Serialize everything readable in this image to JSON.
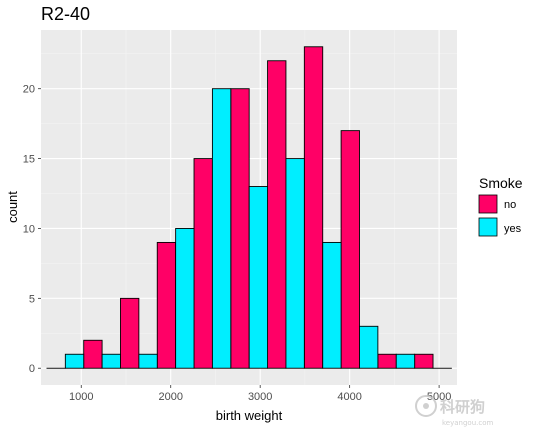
{
  "chart_data": {
    "type": "bar",
    "title": "R2-40",
    "xlabel": "birth weight",
    "ylabel": "count",
    "xlim": [
      550,
      5200
    ],
    "ylim": [
      -1.2,
      24.2
    ],
    "xticks": [
      1000,
      2000,
      3000,
      4000,
      5000
    ],
    "yticks": [
      0,
      5,
      10,
      15,
      20
    ],
    "bin_width": 411,
    "legend": {
      "title": "Smoke",
      "position": "right"
    },
    "series": [
      {
        "name": "no",
        "color": "#ff0066",
        "bins": [
          {
            "x": 822,
            "value": 0
          },
          {
            "x": 1233,
            "value": 2
          },
          {
            "x": 1644,
            "value": 5
          },
          {
            "x": 2055,
            "value": 9
          },
          {
            "x": 2466,
            "value": 15
          },
          {
            "x": 2877,
            "value": 20
          },
          {
            "x": 3288,
            "value": 22
          },
          {
            "x": 3699,
            "value": 23
          },
          {
            "x": 4110,
            "value": 17
          },
          {
            "x": 4521,
            "value": 1
          },
          {
            "x": 4932,
            "value": 1
          }
        ]
      },
      {
        "name": "yes",
        "color": "#00eeff",
        "bins": [
          {
            "x": 822,
            "value": 1
          },
          {
            "x": 1233,
            "value": 1
          },
          {
            "x": 1644,
            "value": 1
          },
          {
            "x": 2055,
            "value": 10
          },
          {
            "x": 2466,
            "value": 20
          },
          {
            "x": 2877,
            "value": 13
          },
          {
            "x": 3288,
            "value": 15
          },
          {
            "x": 3699,
            "value": 9
          },
          {
            "x": 4110,
            "value": 3
          },
          {
            "x": 4521,
            "value": 1
          },
          {
            "x": 4932,
            "value": 0
          }
        ]
      }
    ],
    "panel_background": "#ebebeb",
    "grid": true
  },
  "watermark": {
    "text": "科研狗",
    "sub": "keyangou.com"
  }
}
